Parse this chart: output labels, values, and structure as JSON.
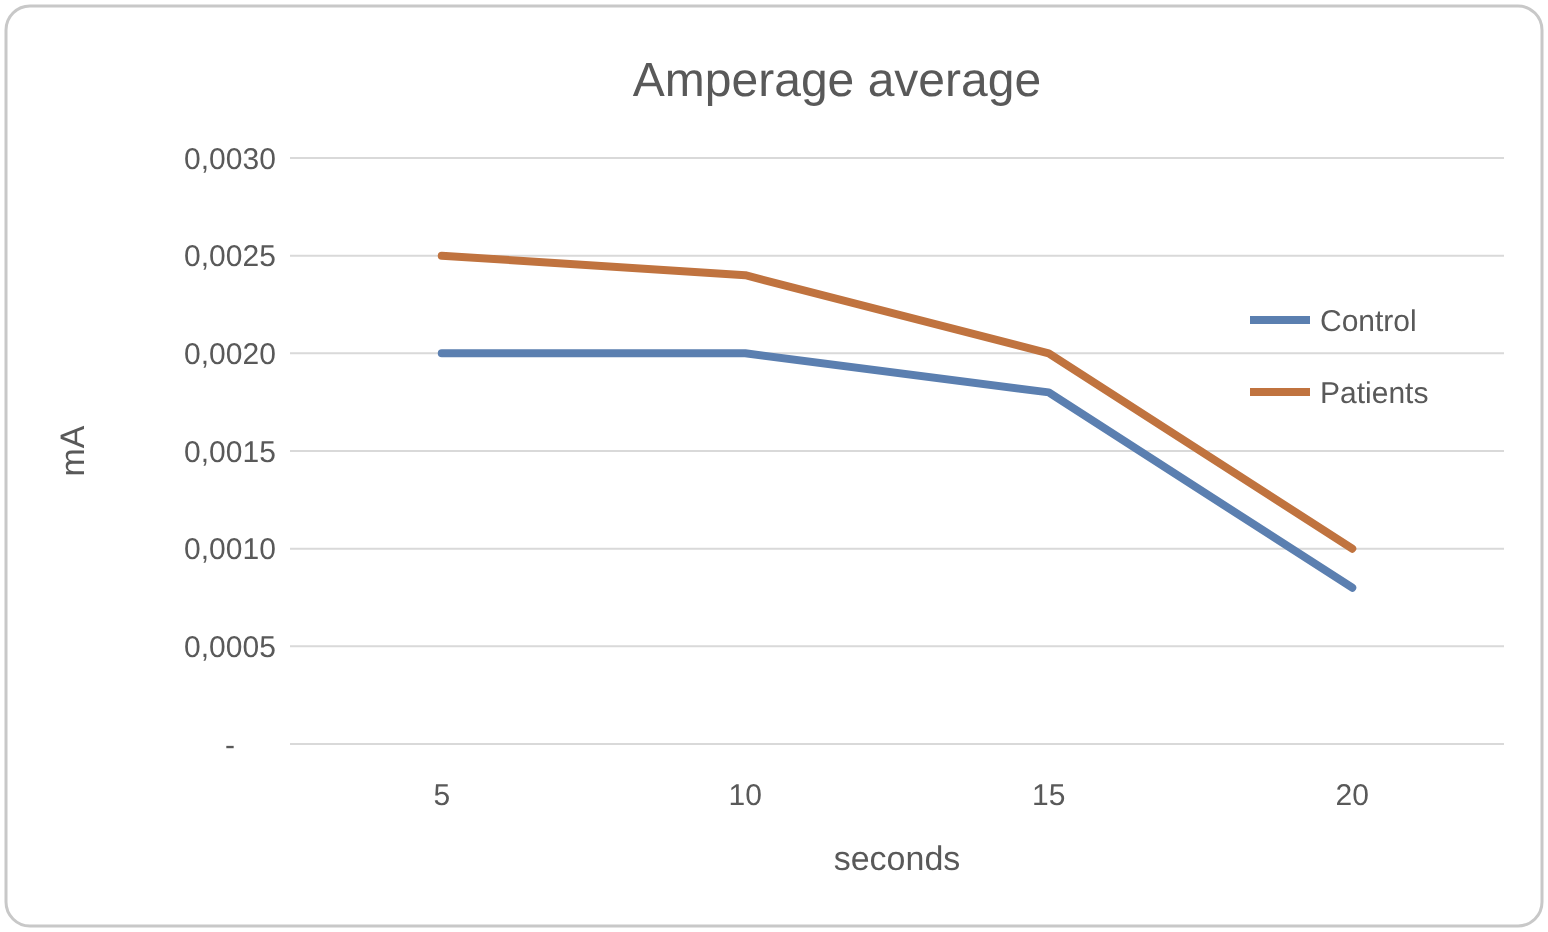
{
  "chart_data": {
    "type": "line",
    "title": "Amperage average",
    "xlabel": "seconds",
    "ylabel": "mA",
    "categories": [
      "5",
      "10",
      "15",
      "20"
    ],
    "series": [
      {
        "name": "Control",
        "color": "#5b7fb0",
        "values": [
          0.002,
          0.002,
          0.0018,
          0.0008
        ]
      },
      {
        "name": "Patients",
        "color": "#c0733f",
        "values": [
          0.0025,
          0.0024,
          0.002,
          0.001
        ]
      }
    ],
    "ylim": [
      0,
      0.003
    ],
    "yticks": [
      {
        "value": 0,
        "label": "-"
      },
      {
        "value": 0.0005,
        "label": "0,0005"
      },
      {
        "value": 0.001,
        "label": "0,0010"
      },
      {
        "value": 0.0015,
        "label": "0,0015"
      },
      {
        "value": 0.002,
        "label": "0,0020"
      },
      {
        "value": 0.0025,
        "label": "0,0025"
      },
      {
        "value": 0.003,
        "label": "0,0030"
      }
    ],
    "grid": "y",
    "legend": "right",
    "marker": "none",
    "line_style": "solid"
  }
}
